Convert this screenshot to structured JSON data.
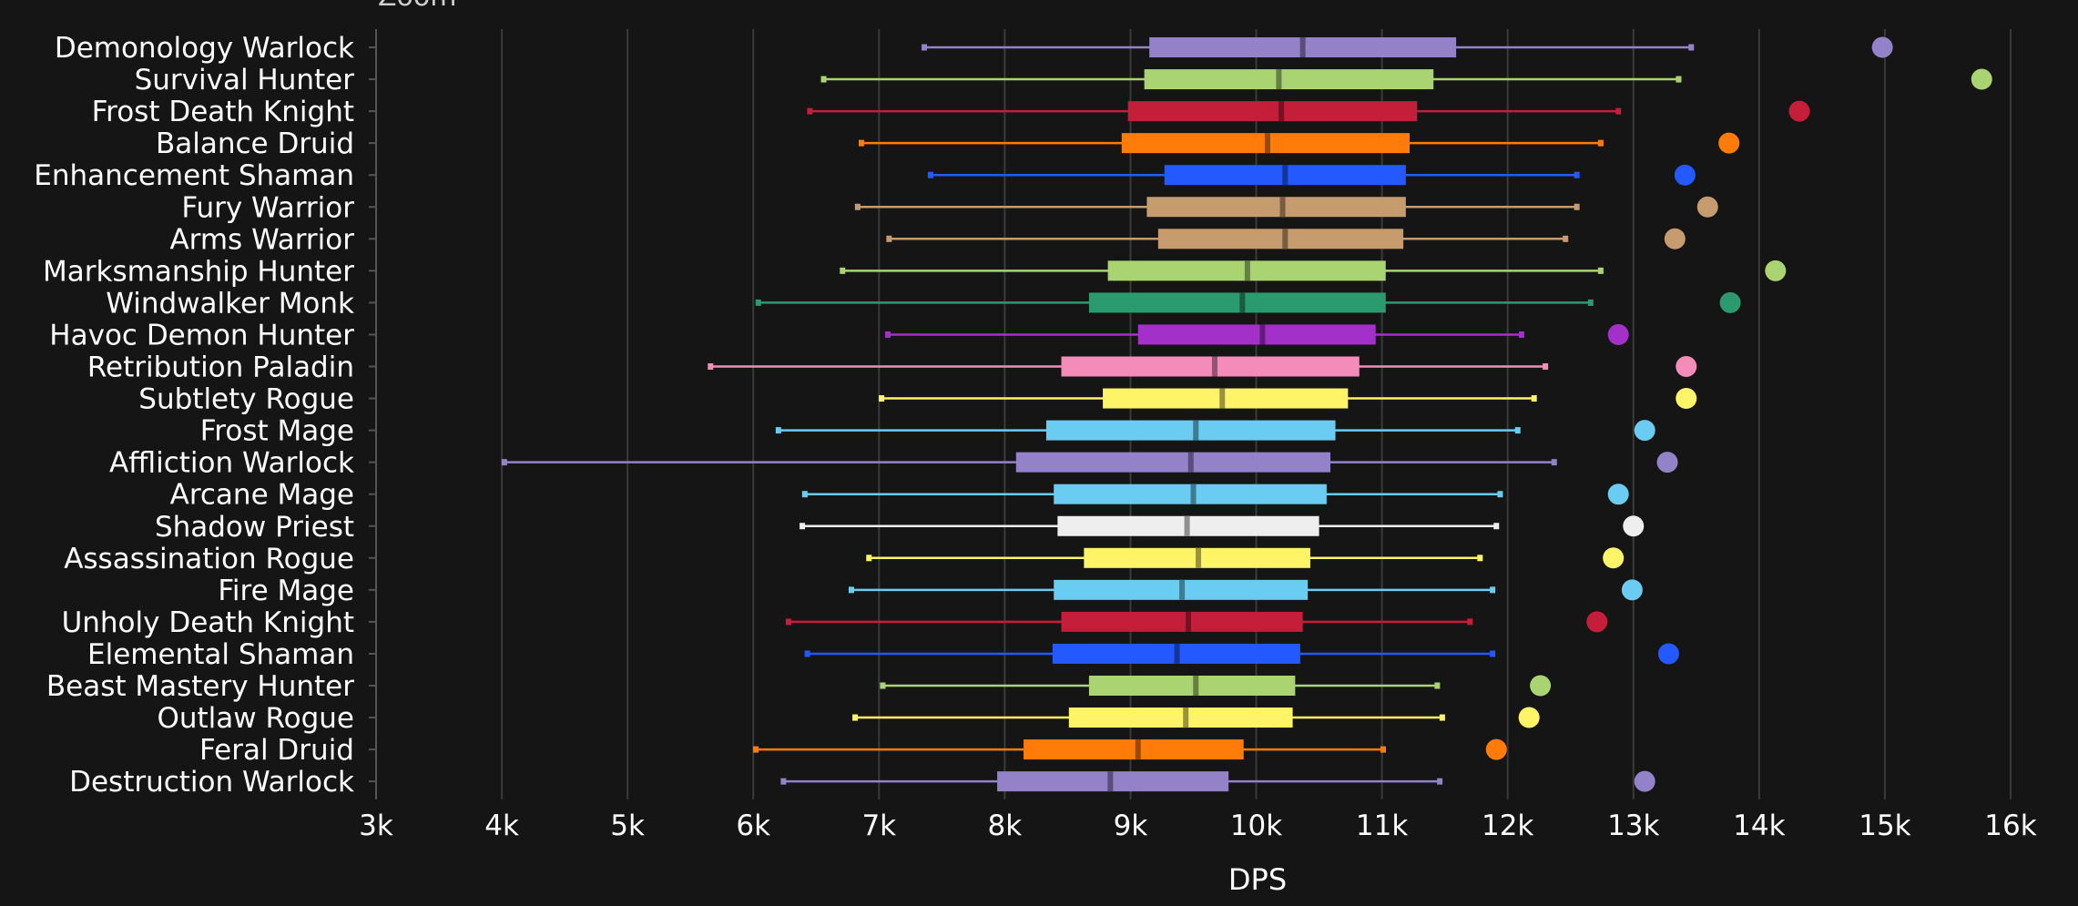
{
  "zoom_label": "Zoom",
  "chart_data": {
    "type": "boxplot",
    "title": "",
    "xlabel": "DPS",
    "ylabel": "",
    "xlim": [
      3000,
      16000
    ],
    "x_ticks": [
      3000,
      4000,
      5000,
      6000,
      7000,
      8000,
      9000,
      10000,
      11000,
      12000,
      13000,
      14000,
      15000,
      16000
    ],
    "x_tick_labels": [
      "3k",
      "4k",
      "5k",
      "6k",
      "7k",
      "8k",
      "9k",
      "10k",
      "11k",
      "12k",
      "13k",
      "14k",
      "15k",
      "16k"
    ],
    "grid": true,
    "series": [
      {
        "name": "Demonology Warlock",
        "color": "#9482C9",
        "whisker_low": 7360,
        "q1": 9150,
        "median": 10370,
        "q3": 11590,
        "whisker_high": 13460,
        "max": 14980
      },
      {
        "name": "Survival Hunter",
        "color": "#AAD372",
        "whisker_low": 6560,
        "q1": 9110,
        "median": 10180,
        "q3": 11410,
        "whisker_high": 13360,
        "max": 15770
      },
      {
        "name": "Frost Death Knight",
        "color": "#C41E3A",
        "whisker_low": 6450,
        "q1": 8980,
        "median": 10200,
        "q3": 11280,
        "whisker_high": 12880,
        "max": 14320
      },
      {
        "name": "Balance Druid",
        "color": "#FF7C0A",
        "whisker_low": 6860,
        "q1": 8930,
        "median": 10090,
        "q3": 11220,
        "whisker_high": 12740,
        "max": 13760
      },
      {
        "name": "Enhancement Shaman",
        "color": "#2359FF",
        "whisker_low": 7410,
        "q1": 9270,
        "median": 10230,
        "q3": 11190,
        "whisker_high": 12550,
        "max": 13410
      },
      {
        "name": "Fury Warrior",
        "color": "#C69B6D",
        "whisker_low": 6830,
        "q1": 9130,
        "median": 10210,
        "q3": 11190,
        "whisker_high": 12550,
        "max": 13590
      },
      {
        "name": "Arms Warrior",
        "color": "#C69B6D",
        "whisker_low": 7080,
        "q1": 9220,
        "median": 10230,
        "q3": 11170,
        "whisker_high": 12460,
        "max": 13330
      },
      {
        "name": "Marksmanship Hunter",
        "color": "#AAD372",
        "whisker_low": 6710,
        "q1": 8820,
        "median": 9930,
        "q3": 11030,
        "whisker_high": 12740,
        "max": 14130
      },
      {
        "name": "Windwalker Monk",
        "color": "#2B9A6E",
        "whisker_low": 6040,
        "q1": 8670,
        "median": 9890,
        "q3": 11030,
        "whisker_high": 12660,
        "max": 13770
      },
      {
        "name": "Havoc Demon Hunter",
        "color": "#A330C9",
        "whisker_low": 7070,
        "q1": 9060,
        "median": 10050,
        "q3": 10950,
        "whisker_high": 12110,
        "max": 12880
      },
      {
        "name": "Retribution Paladin",
        "color": "#F48CBA",
        "whisker_low": 5660,
        "q1": 8450,
        "median": 9670,
        "q3": 10820,
        "whisker_high": 12300,
        "max": 13420
      },
      {
        "name": "Subtlety Rogue",
        "color": "#FFF468",
        "whisker_low": 7020,
        "q1": 8780,
        "median": 9730,
        "q3": 10730,
        "whisker_high": 12210,
        "max": 13420
      },
      {
        "name": "Frost Mage",
        "color": "#69CCF0",
        "whisker_low": 6200,
        "q1": 8330,
        "median": 9520,
        "q3": 10630,
        "whisker_high": 12080,
        "max": 13090
      },
      {
        "name": "Affliction Warlock",
        "color": "#9482C9",
        "whisker_low": 4020,
        "q1": 8090,
        "median": 9480,
        "q3": 10590,
        "whisker_high": 12370,
        "max": 13270
      },
      {
        "name": "Arcane Mage",
        "color": "#69CCF0",
        "whisker_low": 6410,
        "q1": 8390,
        "median": 9500,
        "q3": 10560,
        "whisker_high": 11940,
        "max": 12880
      },
      {
        "name": "Shadow Priest",
        "color": "#EEEEEE",
        "whisker_low": 6390,
        "q1": 8420,
        "median": 9450,
        "q3": 10500,
        "whisker_high": 11910,
        "max": 13000
      },
      {
        "name": "Assassination Rogue",
        "color": "#FFF468",
        "whisker_low": 6920,
        "q1": 8630,
        "median": 9540,
        "q3": 10430,
        "whisker_high": 11780,
        "max": 12840
      },
      {
        "name": "Fire Mage",
        "color": "#69CCF0",
        "whisker_low": 6780,
        "q1": 8390,
        "median": 9410,
        "q3": 10410,
        "whisker_high": 11880,
        "max": 12990
      },
      {
        "name": "Unholy Death Knight",
        "color": "#C41E3A",
        "whisker_low": 6280,
        "q1": 8450,
        "median": 9460,
        "q3": 10370,
        "whisker_high": 11700,
        "max": 12710
      },
      {
        "name": "Elemental Shaman",
        "color": "#2359FF",
        "whisker_low": 6430,
        "q1": 8380,
        "median": 9370,
        "q3": 10350,
        "whisker_high": 11880,
        "max": 13280
      },
      {
        "name": "Beast Mastery Hunter",
        "color": "#AAD372",
        "whisker_low": 7030,
        "q1": 8670,
        "median": 9520,
        "q3": 10310,
        "whisker_high": 11440,
        "max": 12260
      },
      {
        "name": "Outlaw Rogue",
        "color": "#FFF468",
        "whisker_low": 6810,
        "q1": 8510,
        "median": 9440,
        "q3": 10290,
        "whisker_high": 11480,
        "max": 12170
      },
      {
        "name": "Feral Druid",
        "color": "#FF7C0A",
        "whisker_low": 6020,
        "q1": 8150,
        "median": 9060,
        "q3": 9900,
        "whisker_high": 11010,
        "max": 11910
      },
      {
        "name": "Destruction Warlock",
        "color": "#9482C9",
        "whisker_low": 6240,
        "q1": 7940,
        "median": 8840,
        "q3": 9780,
        "whisker_high": 11460,
        "max": 13090
      }
    ]
  }
}
